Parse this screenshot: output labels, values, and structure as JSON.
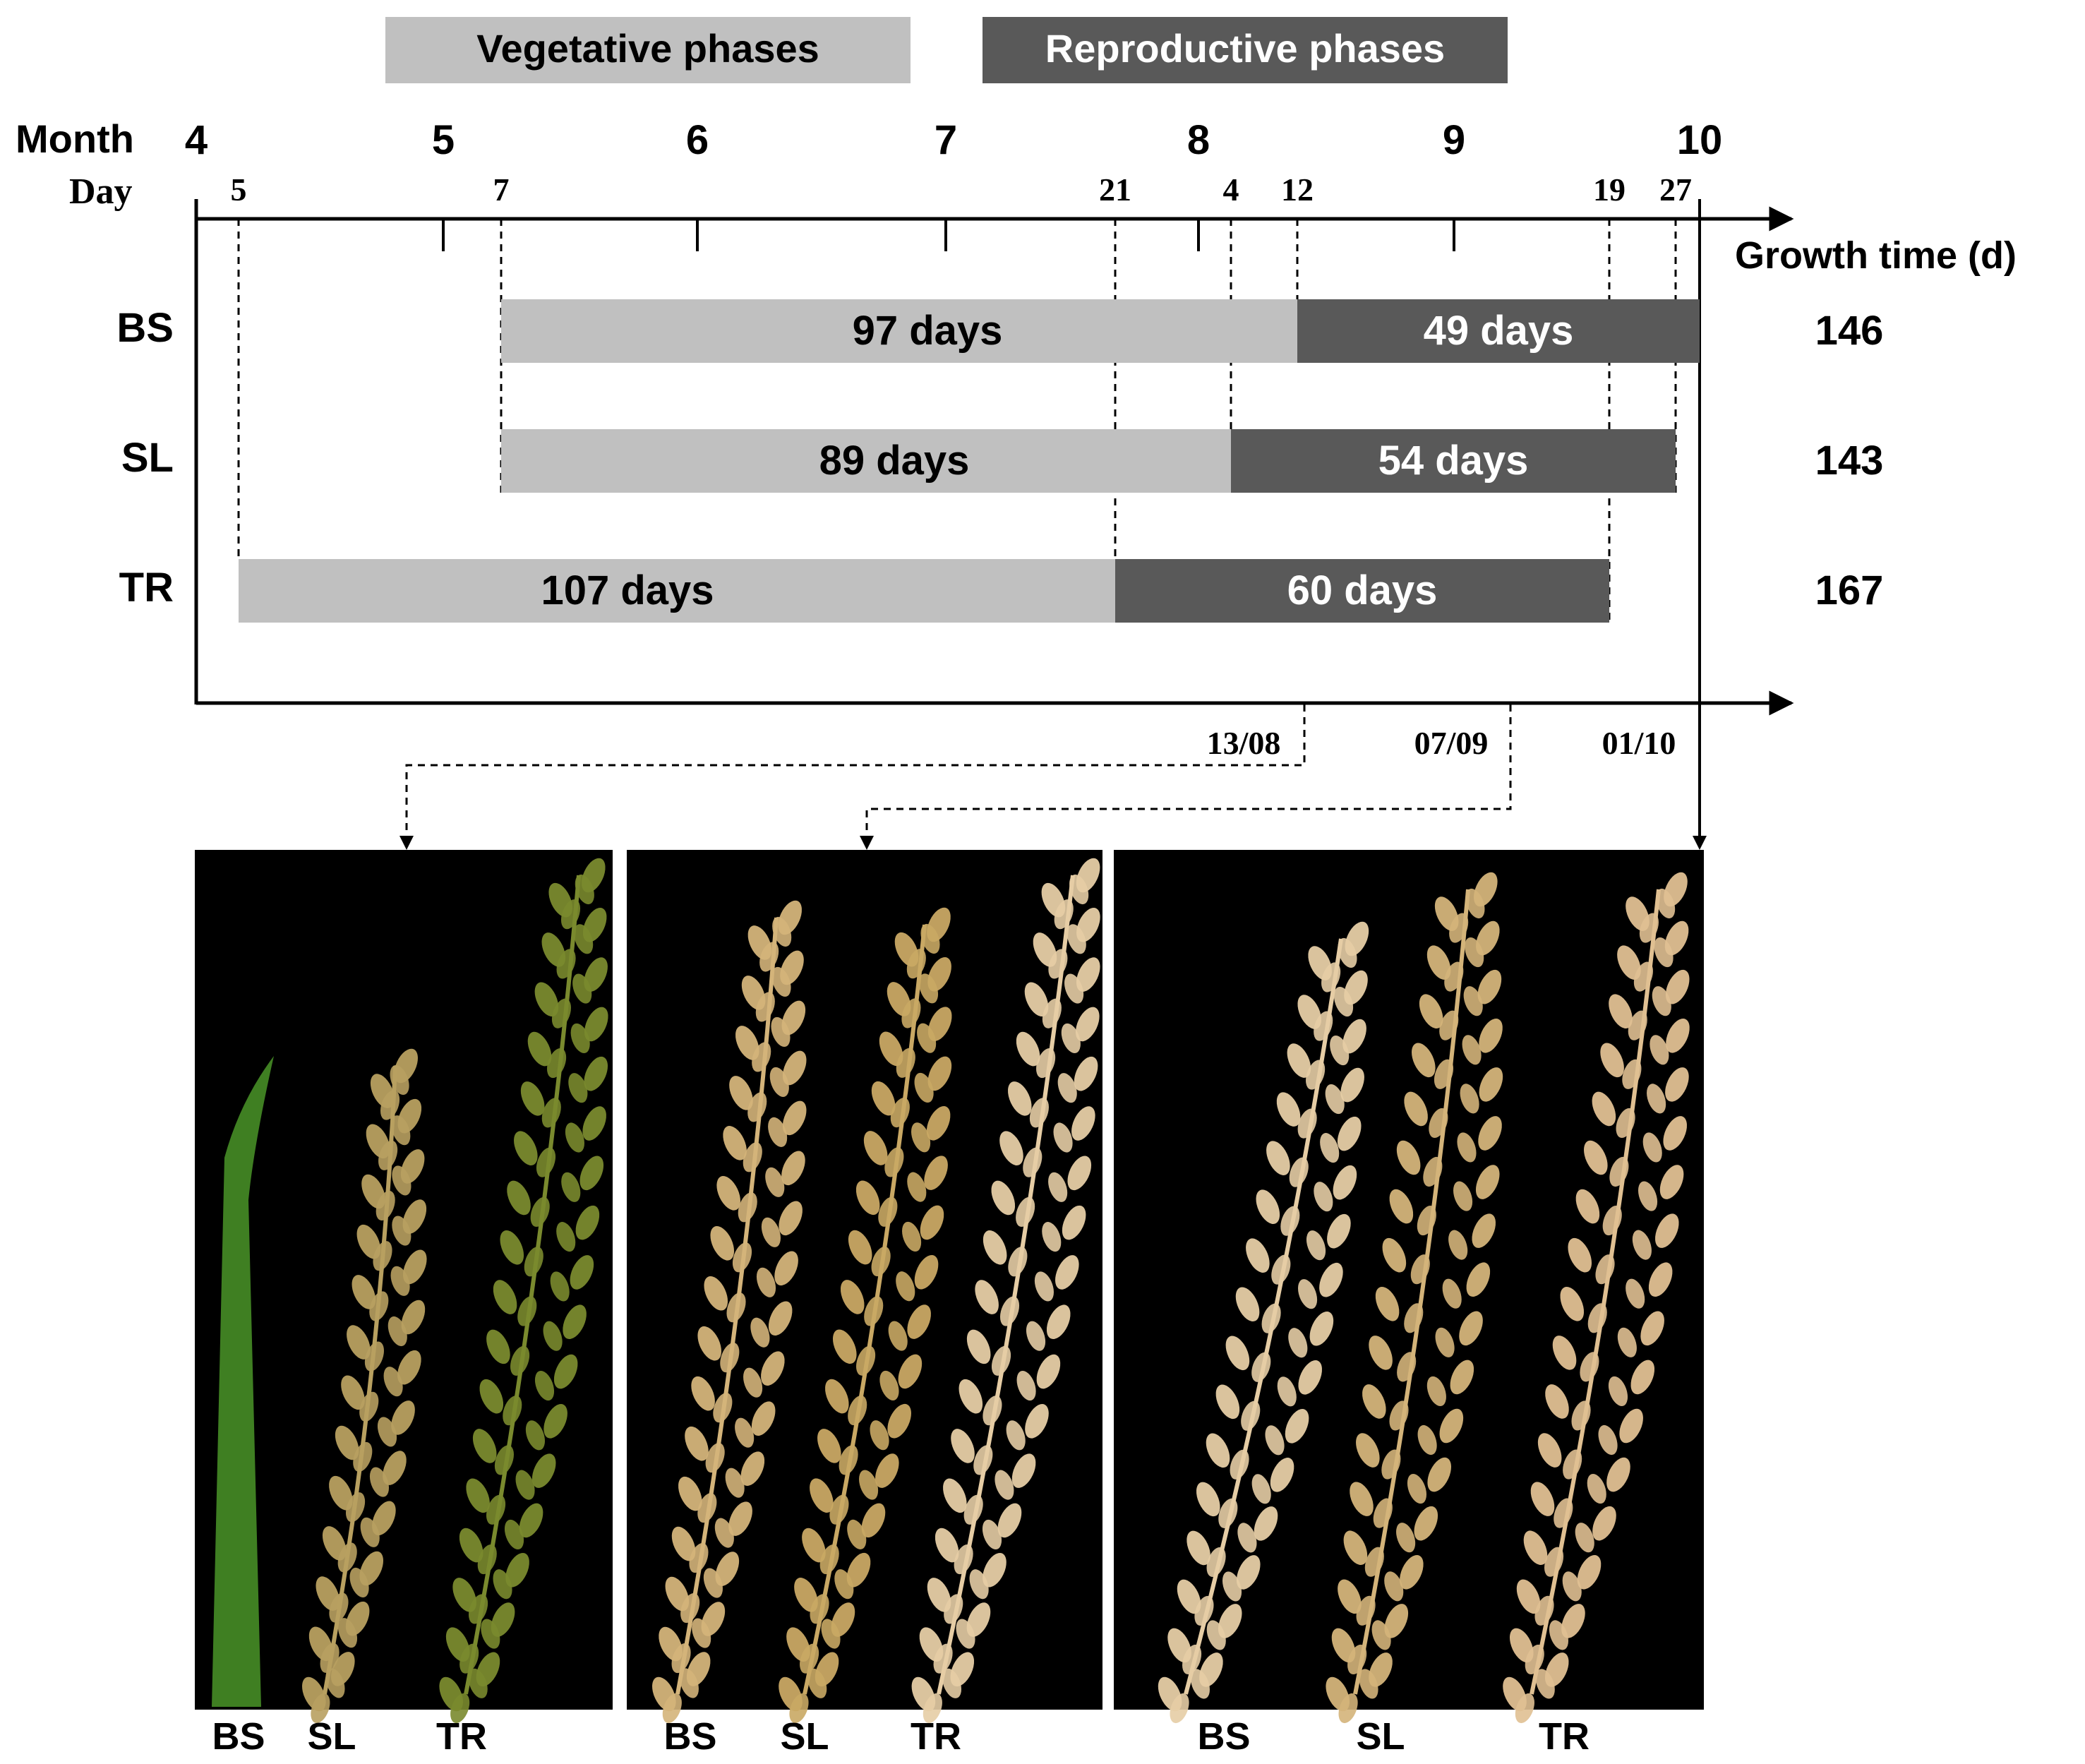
{
  "legend": {
    "vegetative": "Vegetative phases",
    "reproductive": "Reproductive phases"
  },
  "axis": {
    "month_label": "Month",
    "day_label": "Day",
    "growth_time_label": "Growth time (d)",
    "months": [
      "4",
      "5",
      "6",
      "7",
      "8",
      "9",
      "10"
    ],
    "day_ticks": [
      "5",
      "7",
      "21",
      "4",
      "12",
      "19",
      "27"
    ],
    "sampling_dates": [
      "13/08",
      "07/09",
      "01/10"
    ]
  },
  "rows": [
    {
      "label": "BS",
      "vegetative": "97 days",
      "reproductive": "49 days",
      "total": "146"
    },
    {
      "label": "SL",
      "vegetative": "89 days",
      "reproductive": "54 days",
      "total": "143"
    },
    {
      "label": "TR",
      "vegetative": "107 days",
      "reproductive": "60 days",
      "total": "167"
    }
  ],
  "photo_labels": [
    "BS",
    "SL",
    "TR"
  ],
  "colors": {
    "vegetative": "#c0c0c0",
    "reproductive": "#595959",
    "photo_bg": "#000000",
    "green_panicle": "#5f8a2e",
    "golden_panicle": "#d4b47a",
    "pale_panicle": "#e6cda5"
  }
}
